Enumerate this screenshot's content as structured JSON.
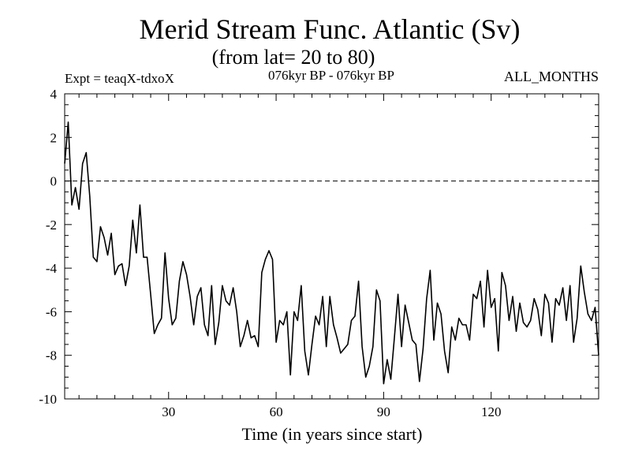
{
  "chart_data": {
    "type": "line",
    "title": "Merid Stream Func. Atlantic (Sv)",
    "subtitle": "(from lat= 20 to 80)",
    "left_label": "Expt = teaqX-tdxoX",
    "center_label": "076kyr BP - 076kyr BP",
    "right_label": "ALL_MONTHS",
    "xlabel": "Time (in years since start)",
    "ylabel": "",
    "xlim": [
      1,
      150
    ],
    "ylim": [
      -10,
      4
    ],
    "xticks": [
      30,
      60,
      90,
      120
    ],
    "xtick_labels": [
      "30",
      "60",
      "90",
      "120"
    ],
    "yticks": [
      4,
      2,
      0,
      -2,
      -4,
      -6,
      -8,
      -10
    ],
    "ytick_labels": [
      "4",
      "2",
      "0",
      "-2",
      "-4",
      "-6",
      "-8",
      "-10"
    ],
    "reference_line": {
      "y": 0,
      "style": "dashed"
    },
    "line_color": "#000000",
    "series": [
      {
        "name": "Merid Stream Func.",
        "x": [
          1,
          2,
          3,
          4,
          5,
          6,
          7,
          8,
          9,
          10,
          11,
          12,
          13,
          14,
          15,
          16,
          17,
          18,
          19,
          20,
          21,
          22,
          23,
          24,
          25,
          26,
          27,
          28,
          29,
          30,
          31,
          32,
          33,
          34,
          35,
          36,
          37,
          38,
          39,
          40,
          41,
          42,
          43,
          44,
          45,
          46,
          47,
          48,
          49,
          50,
          51,
          52,
          53,
          54,
          55,
          56,
          57,
          58,
          59,
          60,
          61,
          62,
          63,
          64,
          65,
          66,
          67,
          68,
          69,
          70,
          71,
          72,
          73,
          74,
          75,
          76,
          77,
          78,
          79,
          80,
          81,
          82,
          83,
          84,
          85,
          86,
          87,
          88,
          89,
          90,
          91,
          92,
          93,
          94,
          95,
          96,
          97,
          98,
          99,
          100,
          101,
          102,
          103,
          104,
          105,
          106,
          107,
          108,
          109,
          110,
          111,
          112,
          113,
          114,
          115,
          116,
          117,
          118,
          119,
          120,
          121,
          122,
          123,
          124,
          125,
          126,
          127,
          128,
          129,
          130,
          131,
          132,
          133,
          134,
          135,
          136,
          137,
          138,
          139,
          140,
          141,
          142,
          143,
          144,
          145,
          146,
          147,
          148,
          149,
          150
        ],
        "values": [
          0.8,
          2.7,
          -1.1,
          -0.3,
          -1.3,
          0.8,
          1.3,
          -0.7,
          -3.5,
          -3.7,
          -2.1,
          -2.6,
          -3.4,
          -2.4,
          -4.3,
          -3.9,
          -3.8,
          -4.8,
          -3.9,
          -1.8,
          -3.3,
          -1.1,
          -3.5,
          -3.5,
          -5.2,
          -7.0,
          -6.6,
          -6.3,
          -3.3,
          -5.4,
          -6.6,
          -6.3,
          -4.6,
          -3.7,
          -4.3,
          -5.3,
          -6.6,
          -5.3,
          -4.9,
          -6.6,
          -7.1,
          -4.8,
          -7.5,
          -6.5,
          -4.8,
          -5.5,
          -5.7,
          -4.9,
          -6.0,
          -7.6,
          -7.1,
          -6.4,
          -7.2,
          -7.1,
          -7.6,
          -4.2,
          -3.6,
          -3.2,
          -3.6,
          -7.4,
          -6.4,
          -6.6,
          -6.0,
          -8.9,
          -6.0,
          -6.4,
          -4.8,
          -7.8,
          -8.9,
          -7.5,
          -6.2,
          -6.6,
          -5.3,
          -7.6,
          -5.3,
          -6.6,
          -7.2,
          -7.9,
          -7.7,
          -7.5,
          -6.4,
          -6.2,
          -4.6,
          -7.6,
          -9.0,
          -8.5,
          -7.6,
          -5.0,
          -5.5,
          -9.3,
          -8.2,
          -9.1,
          -7.2,
          -5.2,
          -7.6,
          -5.7,
          -6.5,
          -7.3,
          -7.5,
          -9.2,
          -7.7,
          -5.4,
          -4.1,
          -7.3,
          -5.6,
          -6.1,
          -7.8,
          -8.8,
          -6.7,
          -7.3,
          -6.3,
          -6.6,
          -6.6,
          -7.3,
          -5.2,
          -5.4,
          -4.6,
          -6.7,
          -4.1,
          -5.8,
          -5.4,
          -7.8,
          -4.2,
          -4.8,
          -6.4,
          -5.3,
          -6.9,
          -5.6,
          -6.5,
          -6.7,
          -6.4,
          -5.4,
          -5.9,
          -7.1,
          -5.2,
          -5.6,
          -7.4,
          -5.4,
          -5.7,
          -4.9,
          -6.4,
          -4.8,
          -7.4,
          -6.3,
          -3.9,
          -5.1,
          -6.1,
          -6.4,
          -5.8,
          -8.0
        ]
      }
    ]
  }
}
